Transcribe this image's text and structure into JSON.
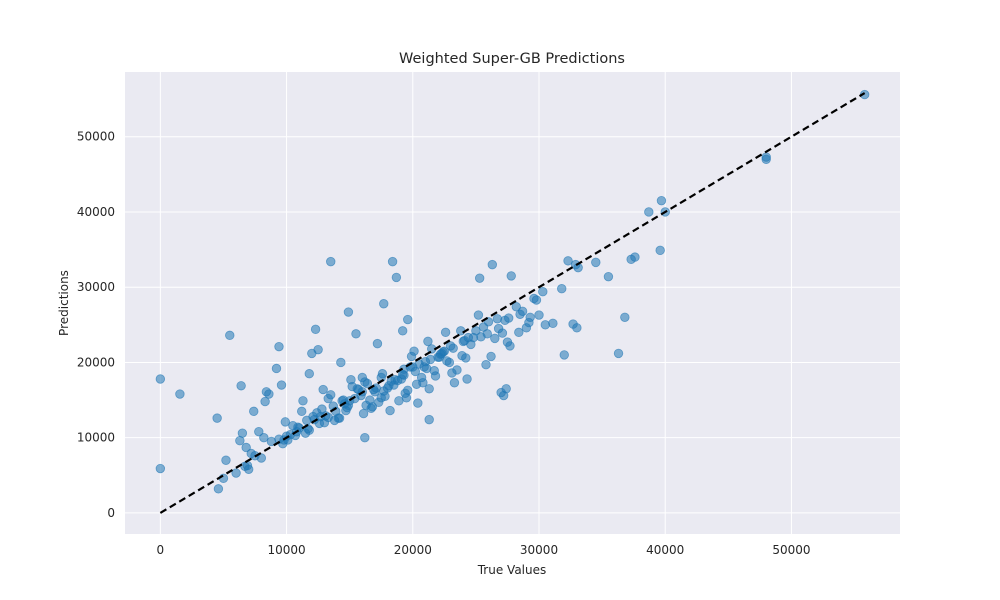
{
  "chart_data": {
    "type": "scatter",
    "title": "Weighted Super-GB Predictions",
    "xlabel": "True Values",
    "ylabel": "Predictions",
    "xlim": [
      -2800,
      58600
    ],
    "ylim": [
      -2800,
      58600
    ],
    "xticks": [
      0,
      10000,
      20000,
      30000,
      40000,
      50000
    ],
    "yticks": [
      0,
      10000,
      20000,
      30000,
      40000,
      50000
    ],
    "grid": true,
    "colors": {
      "background": "#eaeaf2",
      "grid": "#ffffff",
      "points": "#1f77b4",
      "reference_line": "#000000"
    },
    "reference_line": {
      "x": [
        0,
        55800
      ],
      "y": [
        0,
        55800
      ],
      "style": "dashed"
    },
    "series": [
      {
        "x": [
          0,
          0,
          1550,
          4500,
          4600,
          5200,
          5000,
          5500,
          6400,
          6700,
          6000,
          6300,
          6500,
          6800,
          6900,
          7000,
          7200,
          7400,
          7500,
          7800,
          8000,
          8200,
          8300,
          8400,
          8600,
          9200,
          9400,
          9600,
          9800,
          10000,
          10300,
          9900,
          11300,
          11800,
          12000,
          12300,
          12500,
          13500,
          14300,
          14900,
          15500,
          16000,
          17200,
          17700,
          18400,
          18700,
          19200,
          19600,
          20400,
          21300,
          22500,
          24300,
          25300,
          26300,
          27000,
          27200,
          27400,
          27800,
          28500,
          29000,
          29800,
          30300,
          32000,
          32300,
          32700,
          33000,
          34500,
          35500,
          36300,
          36800,
          37300,
          37600,
          38700,
          39600,
          39700,
          40000,
          48000,
          48000,
          55800,
          11800,
          12200,
          13300,
          14800,
          16800,
          18200,
          19500,
          16200,
          20800,
          21800,
          23500,
          24200,
          26200,
          27700,
          28400,
          29200,
          30000,
          30500,
          31800,
          32900,
          33100,
          25200,
          23800,
          22600,
          21200,
          20100,
          19300,
          17600,
          15700,
          14500,
          13300,
          12700,
          11700,
          10700,
          9700,
          8800,
          14100,
          18600,
          21300,
          23100,
          25800,
          26500,
          29300,
          17300,
          19400,
          21700,
          23900,
          27500,
          12900,
          16400,
          19800,
          22200,
          24800,
          10500,
          11200,
          13800,
          15200,
          16100,
          17500,
          18900,
          20700,
          22700,
          24600,
          26800,
          28700,
          13700,
          15100,
          16700,
          18300,
          19900,
          21500,
          23300,
          25400,
          27300,
          29600,
          12400,
          14400,
          16600,
          20300,
          22900,
          27100,
          31100,
          9400,
          10100,
          10900,
          11600,
          12600,
          13100,
          14600,
          15900,
          17100,
          18000,
          19100,
          20000,
          21000,
          22000,
          23000,
          24000,
          25000,
          26000,
          11000,
          11500,
          12100,
          13000,
          13900,
          14700,
          15400,
          16300,
          17000,
          17800,
          18500,
          19300,
          20200,
          21100,
          22100,
          23200,
          24400,
          25600,
          26700,
          28200,
          10800,
          12800,
          14200,
          15600,
          16900,
          18100,
          19600,
          20900,
          22400,
          24100,
          25900,
          27600,
          15000,
          16000,
          17500,
          18800,
          20500,
          22300,
          13500,
          14900,
          16200,
          17700,
          19200,
          21400
        ],
        "y": [
          17800,
          5900,
          15800,
          12600,
          3200,
          7000,
          4600,
          23600,
          16900,
          6200,
          5300,
          9600,
          10600,
          8700,
          6300,
          5800,
          7900,
          13500,
          7600,
          10800,
          7300,
          10000,
          14800,
          16100,
          15800,
          19200,
          22100,
          17000,
          9700,
          10200,
          10400,
          12100,
          14900,
          18500,
          21200,
          24400,
          21700,
          33400,
          20000,
          26700,
          23800,
          18000,
          22500,
          27800,
          33400,
          31300,
          24200,
          25700,
          14600,
          12400,
          21500,
          17800,
          31200,
          33000,
          16000,
          15600,
          16500,
          31500,
          26400,
          24600,
          28300,
          29400,
          21000,
          33500,
          25100,
          24600,
          33300,
          31400,
          21200,
          26000,
          33700,
          34000,
          40000,
          34900,
          41500,
          40000,
          47000,
          47300,
          55600,
          11000,
          12400,
          12700,
          14000,
          14100,
          13600,
          15300,
          10000,
          17300,
          18200,
          19000,
          20600,
          20800,
          22200,
          24000,
          25300,
          26300,
          25000,
          29800,
          33000,
          32600,
          26300,
          24200,
          24000,
          22800,
          21500,
          19100,
          18500,
          16400,
          15000,
          15200,
          12800,
          11200,
          10300,
          9200,
          9500,
          12600,
          17700,
          16500,
          18600,
          19700,
          23200,
          26000,
          14700,
          15900,
          18900,
          20900,
          22700,
          16400,
          17200,
          19400,
          21100,
          23300,
          11600,
          13500,
          12300,
          16800,
          13200,
          15300,
          14900,
          18000,
          20200,
          22400,
          24500,
          26800,
          14200,
          17700,
          13900,
          17500,
          20800,
          21800,
          17300,
          23400,
          25600,
          28500,
          13300,
          14900,
          15000,
          17100,
          20000,
          23900,
          25200,
          9800,
          9700,
          11400,
          12300,
          11900,
          12900,
          14500,
          15600,
          16600,
          16600,
          17800,
          19400,
          20100,
          20700,
          22200,
          22800,
          24200,
          25400,
          11300,
          10600,
          12800,
          12000,
          13500,
          13600,
          15200,
          14300,
          16100,
          15500,
          17000,
          18300,
          18800,
          19200,
          20700,
          21900,
          23300,
          24700,
          25800,
          27400,
          10800,
          13800,
          12600,
          16500,
          16400,
          16900,
          16300,
          19400,
          21400,
          22900,
          23800,
          25900,
          14900,
          16100,
          18000,
          17600,
          19800,
          21200,
          15700,
          14300,
          17400,
          16200,
          18400,
          20400
        ]
      }
    ]
  }
}
